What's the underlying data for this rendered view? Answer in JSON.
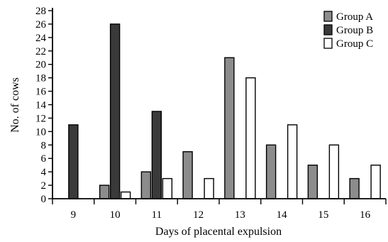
{
  "chart_data": {
    "type": "bar",
    "title": "",
    "xlabel": "Days of placental expulsion",
    "ylabel": "No. of cows",
    "categories": [
      "9",
      "10",
      "11",
      "12",
      "13",
      "14",
      "15",
      "16"
    ],
    "ylim": [
      0,
      28
    ],
    "yticks": [
      0,
      2,
      4,
      6,
      8,
      10,
      12,
      14,
      16,
      18,
      20,
      22,
      24,
      26,
      28
    ],
    "grid": false,
    "legend_position": "top-right",
    "series": [
      {
        "name": "Group A",
        "color": "#8c8c8c",
        "values": [
          0,
          2,
          4,
          7,
          21,
          8,
          5,
          3
        ]
      },
      {
        "name": "Group B",
        "color": "#3a3a3a",
        "values": [
          11,
          26,
          13,
          0,
          0,
          0,
          0,
          0
        ]
      },
      {
        "name": "Group C",
        "color": "#ffffff",
        "values": [
          0,
          1,
          3,
          3,
          18,
          11,
          8,
          5
        ]
      }
    ]
  }
}
